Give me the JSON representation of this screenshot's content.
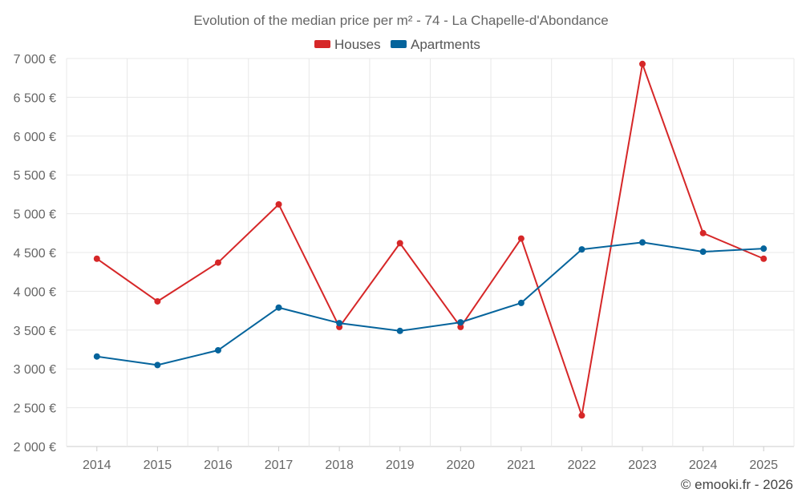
{
  "chart_data": {
    "type": "line",
    "title": "Evolution of the median price per m² - 74 - La Chapelle-d'Abondance",
    "x": [
      "2014",
      "2015",
      "2016",
      "2017",
      "2018",
      "2019",
      "2020",
      "2021",
      "2022",
      "2023",
      "2024",
      "2025"
    ],
    "series": [
      {
        "name": "Houses",
        "color": "#d62728",
        "values": [
          4420,
          3870,
          4370,
          5120,
          3540,
          4620,
          3540,
          4680,
          2400,
          6930,
          4750,
          4420
        ]
      },
      {
        "name": "Apartments",
        "color": "#05649c",
        "values": [
          3160,
          3050,
          3240,
          3790,
          3590,
          3490,
          3600,
          3850,
          4540,
          4630,
          4510,
          4550
        ]
      }
    ],
    "ylim": [
      2000,
      7000
    ],
    "yticks": [
      2000,
      2500,
      3000,
      3500,
      4000,
      4500,
      5000,
      5500,
      6000,
      6500,
      7000
    ],
    "ytick_labels": [
      "2 000 €",
      "2 500 €",
      "3 000 €",
      "3 500 €",
      "4 000 €",
      "4 500 €",
      "5 000 €",
      "5 500 €",
      "6 000 €",
      "6 500 €",
      "7 000 €"
    ],
    "xlabel": "",
    "ylabel": "",
    "grid": true,
    "legend_position": "top-center"
  },
  "credit": "© emooki.fr - 2026"
}
